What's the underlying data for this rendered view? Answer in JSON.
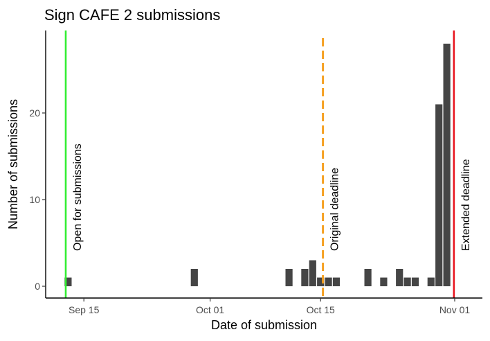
{
  "chart_data": {
    "type": "bar",
    "title": "Sign CAFE 2 submissions",
    "xlabel": "Date of submission",
    "ylabel": "Number of submissions",
    "x_ticks": [
      "Sep 15",
      "Oct 01",
      "Oct 15",
      "Nov 01"
    ],
    "y_ticks": [
      0,
      10,
      20
    ],
    "ylim": [
      0,
      29.5
    ],
    "grid": false,
    "bars": [
      {
        "date": "2021-09-13",
        "count": 1
      },
      {
        "date": "2021-09-29",
        "count": 2
      },
      {
        "date": "2021-10-11",
        "count": 2
      },
      {
        "date": "2021-10-13",
        "count": 2
      },
      {
        "date": "2021-10-14",
        "count": 3
      },
      {
        "date": "2021-10-15",
        "count": 1
      },
      {
        "date": "2021-10-16",
        "count": 1
      },
      {
        "date": "2021-10-17",
        "count": 1
      },
      {
        "date": "2021-10-21",
        "count": 2
      },
      {
        "date": "2021-10-23",
        "count": 1
      },
      {
        "date": "2021-10-25",
        "count": 2
      },
      {
        "date": "2021-10-26",
        "count": 1
      },
      {
        "date": "2021-10-27",
        "count": 1
      },
      {
        "date": "2021-10-29",
        "count": 1
      },
      {
        "date": "2021-10-30",
        "count": 21
      },
      {
        "date": "2021-10-31",
        "count": 28
      }
    ],
    "bar_color": "#454545",
    "annotations": [
      {
        "label": "Open for submissions",
        "date": "2021-09-12.7",
        "color": "#33ee33",
        "style": "solid"
      },
      {
        "label": "Original deadline",
        "date": "2021-10-15.3",
        "color": "#f5a020",
        "style": "dashed"
      },
      {
        "label": "Extended deadline",
        "date": "2021-10-31.9",
        "color": "#e8141e",
        "style": "solid"
      }
    ]
  }
}
